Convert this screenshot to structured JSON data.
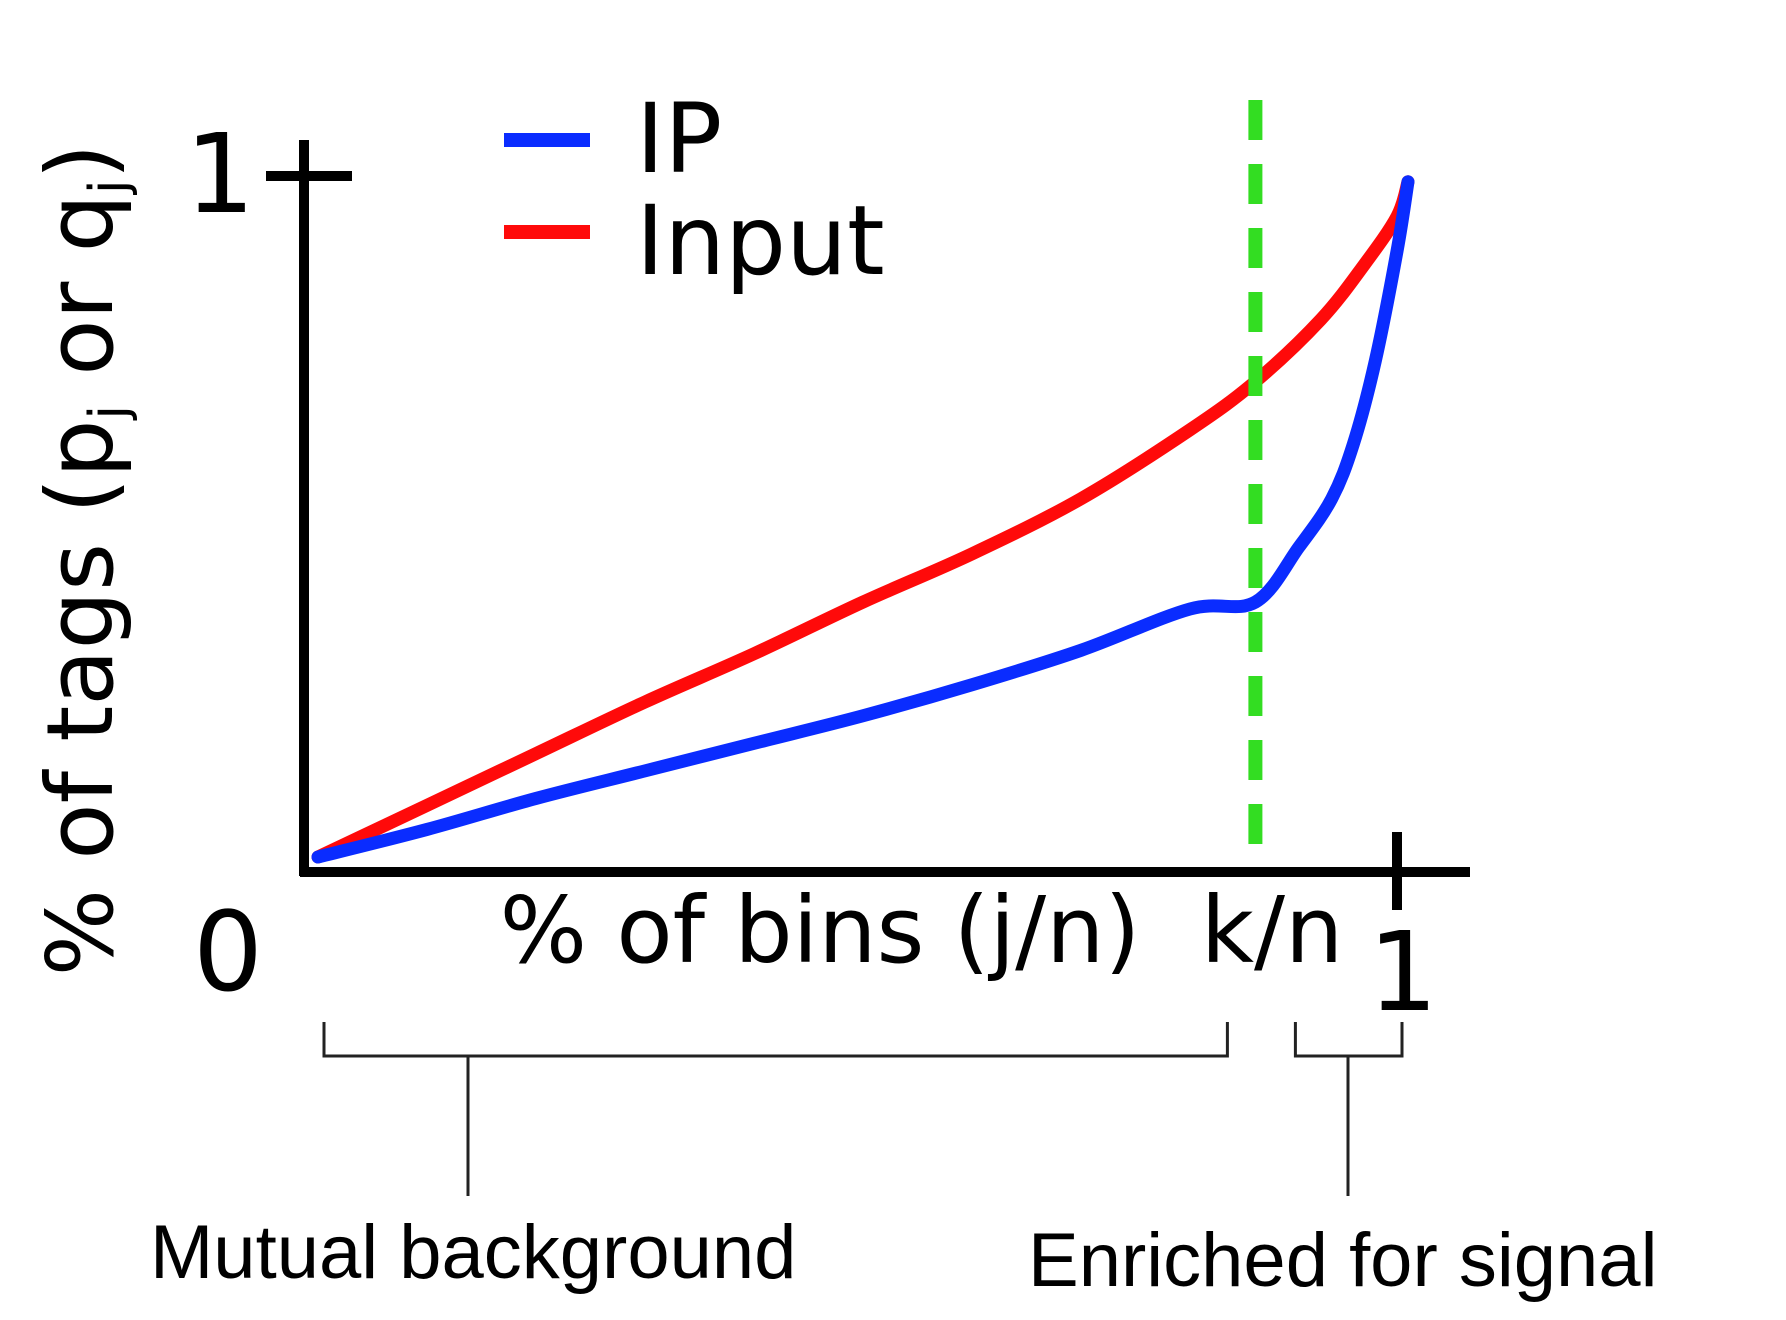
{
  "chart_data": {
    "type": "line",
    "title": "",
    "xlabel": "% of bins (j/n)",
    "ylabel": {
      "prefix": "% of tags (p",
      "sub1": "j",
      "mid": " or q",
      "sub2": "j",
      "suffix": ")"
    },
    "xlim": [
      0,
      1
    ],
    "ylim": [
      0,
      1
    ],
    "x_tick_labels": {
      "zero": "0",
      "one": "1"
    },
    "y_tick_labels": {
      "one": "1"
    },
    "grid": false,
    "legend": {
      "position": "top-left"
    },
    "threshold": {
      "x": 0.86,
      "label": "k/n",
      "color": "#33dd22"
    },
    "series": [
      {
        "name": "IP",
        "color": "#0a2cff",
        "x": [
          0,
          0.1,
          0.2,
          0.3,
          0.4,
          0.5,
          0.6,
          0.7,
          0.8,
          0.86,
          0.9,
          0.93,
          0.95,
          0.97,
          0.99,
          1.0
        ],
        "y": [
          0,
          0.04,
          0.085,
          0.125,
          0.165,
          0.205,
          0.25,
          0.3,
          0.36,
          0.37,
          0.45,
          0.52,
          0.6,
          0.72,
          0.88,
          0.98
        ]
      },
      {
        "name": "Input",
        "color": "#ff0a0a",
        "x": [
          0,
          0.1,
          0.2,
          0.3,
          0.4,
          0.5,
          0.6,
          0.7,
          0.8,
          0.86,
          0.92,
          0.96,
          0.99,
          1.0
        ],
        "y": [
          0,
          0.075,
          0.15,
          0.225,
          0.295,
          0.37,
          0.44,
          0.52,
          0.62,
          0.69,
          0.78,
          0.86,
          0.93,
          0.98
        ]
      }
    ],
    "brackets": [
      {
        "label": "Mutual background",
        "x_start": 0,
        "x_end": 0.86
      },
      {
        "label": "Enriched for signal",
        "x_start": 0.86,
        "x_end": 1.0
      }
    ]
  }
}
